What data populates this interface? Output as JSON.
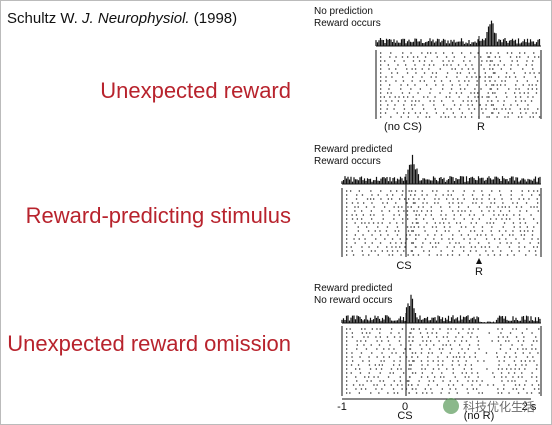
{
  "citation": {
    "author": "Schultz W.",
    "journal": "J. Neurophysiol.",
    "year": "(1998)"
  },
  "labels": [
    "Unexpected reward",
    "Reward-predicting stimulus",
    "Unexpected reward omission"
  ],
  "panels": [
    {
      "caption": [
        "No prediction",
        "Reward occurs"
      ],
      "markers": [
        "(no CS)",
        "R"
      ]
    },
    {
      "caption": [
        "Reward predicted",
        "Reward occurs"
      ],
      "markers": [
        "CS",
        "R"
      ]
    },
    {
      "caption": [
        "Reward predicted",
        "No reward occurs"
      ],
      "markers": [
        "CS",
        "(no R)"
      ]
    }
  ],
  "axis": [
    "-1",
    "0",
    "2 s"
  ],
  "watermark": "科技优化生活"
}
